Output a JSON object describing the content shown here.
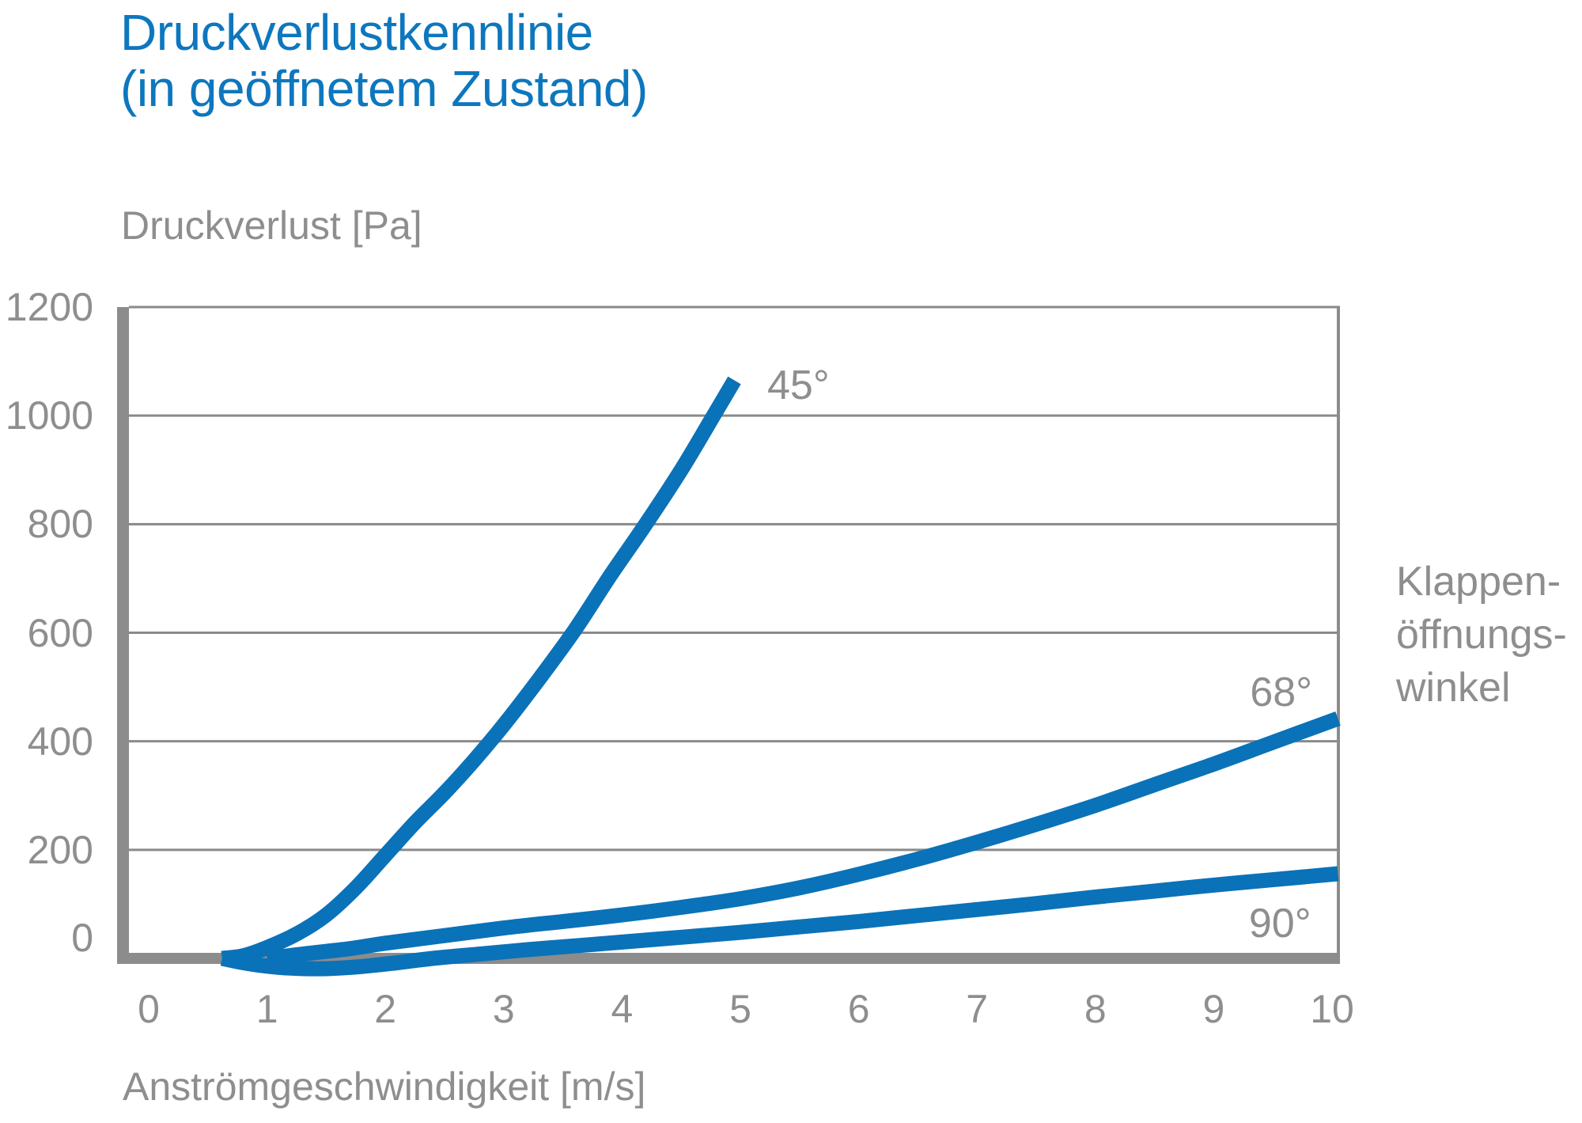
{
  "title": {
    "line1": "Druckverlustkennlinie",
    "line2": "(in geöffnetem Zustand)"
  },
  "colors": {
    "accent_blue": "#0d77be",
    "curve_blue": "#0a72b8",
    "text_gray": "#8e8e8e",
    "axis_gray": "#8c8c8c",
    "grid_gray": "#8a8a8a"
  },
  "chart_data": {
    "type": "line",
    "title": "Druckverlustkennlinie (in geöffnetem Zustand)",
    "xlabel": "Anströmgeschwindigkeit [m/s]",
    "ylabel": "Druckverlust [Pa]",
    "xlim": [
      0,
      10
    ],
    "ylim": [
      0,
      1200
    ],
    "x_ticks": [
      0,
      1,
      2,
      3,
      4,
      5,
      6,
      7,
      8,
      9,
      10
    ],
    "y_ticks": [
      0,
      200,
      400,
      600,
      800,
      1000,
      1200
    ],
    "grid": "horizontal",
    "legend_position": "right",
    "legend_title": [
      "Klappen-",
      "öffnungs-",
      "winkel"
    ],
    "series": [
      {
        "name": "45°",
        "label_at": [
          5.49,
          1055
        ],
        "points": [
          [
            0.62,
            0
          ],
          [
            0.8,
            5
          ],
          [
            1.0,
            20
          ],
          [
            1.25,
            45
          ],
          [
            1.5,
            80
          ],
          [
            1.75,
            130
          ],
          [
            2.0,
            190
          ],
          [
            2.25,
            250
          ],
          [
            2.5,
            305
          ],
          [
            2.75,
            365
          ],
          [
            3.0,
            430
          ],
          [
            3.3,
            515
          ],
          [
            3.6,
            605
          ],
          [
            3.9,
            705
          ],
          [
            4.2,
            800
          ],
          [
            4.5,
            900
          ],
          [
            4.76,
            995
          ],
          [
            4.95,
            1065
          ]
        ]
      },
      {
        "name": "68°",
        "label_at": [
          9.57,
          490
        ],
        "points": [
          [
            1.0,
            0
          ],
          [
            1.3,
            8
          ],
          [
            1.7,
            18
          ],
          [
            2.0,
            28
          ],
          [
            2.5,
            42
          ],
          [
            3.0,
            56
          ],
          [
            3.5,
            68
          ],
          [
            4.0,
            80
          ],
          [
            4.5,
            94
          ],
          [
            5.0,
            110
          ],
          [
            5.5,
            130
          ],
          [
            6.0,
            155
          ],
          [
            6.5,
            183
          ],
          [
            7.0,
            214
          ],
          [
            7.5,
            247
          ],
          [
            8.0,
            282
          ],
          [
            8.5,
            320
          ],
          [
            9.0,
            358
          ],
          [
            9.5,
            398
          ],
          [
            10.05,
            442
          ]
        ]
      },
      {
        "name": "90°",
        "label_at": [
          9.56,
          64
        ],
        "points": [
          [
            0.62,
            0
          ],
          [
            0.75,
            -6
          ],
          [
            0.95,
            -13
          ],
          [
            1.2,
            -18
          ],
          [
            1.5,
            -19
          ],
          [
            1.8,
            -15
          ],
          [
            2.1,
            -8
          ],
          [
            2.4,
            0
          ],
          [
            2.8,
            8
          ],
          [
            3.2,
            16
          ],
          [
            3.6,
            23
          ],
          [
            4.0,
            30
          ],
          [
            4.5,
            39
          ],
          [
            5.0,
            48
          ],
          [
            5.5,
            58
          ],
          [
            6.0,
            68
          ],
          [
            6.5,
            79
          ],
          [
            7.0,
            90
          ],
          [
            7.5,
            101
          ],
          [
            8.0,
            113
          ],
          [
            8.5,
            124
          ],
          [
            9.0,
            135
          ],
          [
            9.5,
            145
          ],
          [
            10.05,
            156
          ]
        ]
      }
    ]
  }
}
